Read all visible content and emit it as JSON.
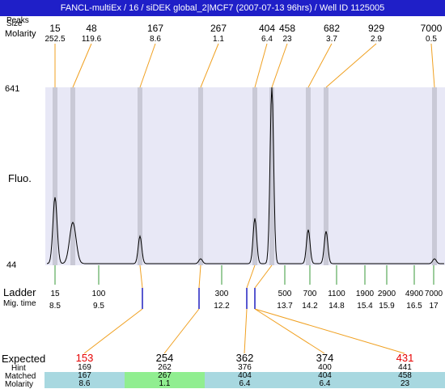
{
  "window": {
    "title": "FANCL-multiEx / 16 / siDEK global_2|MCF7 (2007-07-13 96hrs) / Well ID 1125005"
  },
  "labels": {
    "peaks_label": "Peaks",
    "size_label": "Size",
    "molarity_label": "Molarity",
    "fluo_label": "Fluo.",
    "ymax": "641",
    "ymin": "44",
    "ladder_label": "Ladder",
    "migtime_label": "Mig. time",
    "expected_label": "Expected",
    "hint_label": "Hint",
    "matched_label": "Matched",
    "molarity2_label": "Molarity"
  },
  "peaks": [
    {
      "size": "15",
      "molarity": "252.5"
    },
    {
      "size": "48",
      "molarity": "119.6"
    },
    {
      "size": "167",
      "molarity": "8.6"
    },
    {
      "size": "267",
      "molarity": "1.1"
    },
    {
      "size": "404",
      "molarity": "6.4"
    },
    {
      "size": "458",
      "molarity": "23"
    },
    {
      "size": "682",
      "molarity": "3.7"
    },
    {
      "size": "929",
      "molarity": "2.9"
    },
    {
      "size": "7000",
      "molarity": "0.5"
    }
  ],
  "ladder": [
    {
      "size": "15",
      "mig": "8.5"
    },
    {
      "size": "100",
      "mig": "9.5"
    },
    {
      "size": "300",
      "mig": "12.2"
    },
    {
      "size": "500",
      "mig": "13.7"
    },
    {
      "size": "700",
      "mig": "14.2"
    },
    {
      "size": "1100",
      "mig": "14.8"
    },
    {
      "size": "1900",
      "mig": "15.4"
    },
    {
      "size": "2900",
      "mig": "15.9"
    },
    {
      "size": "4900",
      "mig": "16.5"
    },
    {
      "size": "7000",
      "mig": "17"
    }
  ],
  "table": [
    {
      "expected": "153",
      "expected_color": "#e60000",
      "hint": "169",
      "matched": "167",
      "molarity": "8.6",
      "bg": "#a8d8e0"
    },
    {
      "expected": "254",
      "expected_color": "#000000",
      "hint": "262",
      "matched": "267",
      "molarity": "1.1",
      "bg": "#90ee90"
    },
    {
      "expected": "362",
      "expected_color": "#000000",
      "hint": "376",
      "matched": "404",
      "molarity": "6.4",
      "bg": "#a8d8e0"
    },
    {
      "expected": "374",
      "expected_color": "#000000",
      "hint": "400",
      "matched": "404",
      "molarity": "6.4",
      "bg": "#a8d8e0"
    },
    {
      "expected": "431",
      "expected_color": "#e60000",
      "hint": "441",
      "matched": "458",
      "molarity": "23",
      "bg": "#a8d8e0"
    }
  ],
  "colors": {
    "plot_bg": "#e8e8f6",
    "band": "#c9c9d6",
    "orange": "#f0a020",
    "ladder_tick": "#3a9a3a",
    "blue_tick": "#2020c0"
  }
}
